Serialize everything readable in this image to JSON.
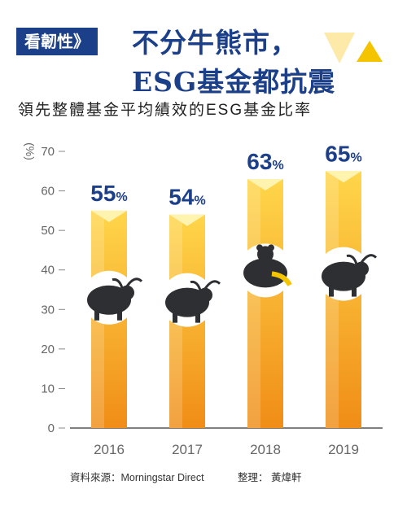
{
  "header": {
    "tag": "看韌性》",
    "headline_line1": "不分牛熊市，",
    "headline_line2": "ESG基金都抗震",
    "subtitle": "領先整體基金平均績效的ESG基金比率"
  },
  "chart_data": {
    "type": "bar",
    "categories": [
      "2016",
      "2017",
      "2018",
      "2019"
    ],
    "values": [
      55,
      54,
      63,
      65
    ],
    "value_labels": [
      "55",
      "54",
      "63",
      "65"
    ],
    "value_suffix": "%",
    "ylabel": "%",
    "ylim": [
      0,
      70
    ],
    "yticks": [
      0,
      10,
      20,
      30,
      40,
      50,
      60,
      70
    ],
    "grid": false,
    "colors": {
      "bar_top": "#ffd64a",
      "bar_bottom": "#f08d17",
      "value_label": "#1c3f8a",
      "axis": "#888888"
    },
    "markers": [
      "bull",
      "bull",
      "bear",
      "bull"
    ]
  },
  "footer": {
    "source": "資料來源：Morningstar Direct",
    "credit": "整理： 黃煒軒"
  }
}
